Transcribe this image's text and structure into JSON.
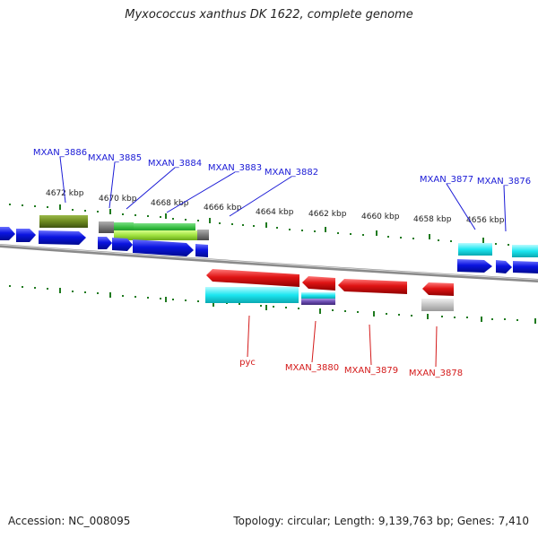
{
  "title": "Myxococcus xanthus DK 1622, complete genome",
  "footer": {
    "accession": "Accession: NC_008095",
    "summary": "Topology: circular; Length: 9,139,763 bp; Genes: 7,410"
  },
  "ruler": {
    "labels": [
      "4672 kbp",
      "4670 kbp",
      "4668 kbp",
      "4666 kbp",
      "4664 kbp",
      "4662 kbp",
      "4660 kbp",
      "4658 kbp",
      "4656 kbp"
    ]
  },
  "genes_forward": [
    {
      "id": "g3886",
      "label": "MXAN_3886"
    },
    {
      "id": "g3885",
      "label": "MXAN_3885"
    },
    {
      "id": "g3884",
      "label": "MXAN_3884"
    },
    {
      "id": "g3883",
      "label": "MXAN_3883"
    },
    {
      "id": "g3882",
      "label": "MXAN_3882"
    },
    {
      "id": "g3877",
      "label": "MXAN_3877"
    },
    {
      "id": "g3876",
      "label": "MXAN_3876"
    }
  ],
  "genes_reverse": [
    {
      "id": "pyc",
      "label": "pyc"
    },
    {
      "id": "g3880",
      "label": "MXAN_3880"
    },
    {
      "id": "g3879",
      "label": "MXAN_3879"
    },
    {
      "id": "g3878",
      "label": "MXAN_3878"
    }
  ],
  "colors": {
    "forward_label": "#1a1ad6",
    "reverse_label": "#d41a1a",
    "cds_forward": "#0a14e0",
    "cds_reverse": "#e01414",
    "tick": "#1f7a1f",
    "backbone": "#8a8a8a",
    "cyan": "#1ce6f0",
    "olive": "#6d8a1f",
    "green": "#2fb83a",
    "lime": "#9fe23f",
    "gray": "#7a7a7a",
    "lightgray": "#c4c4c4",
    "purple": "#6a4bb0"
  }
}
